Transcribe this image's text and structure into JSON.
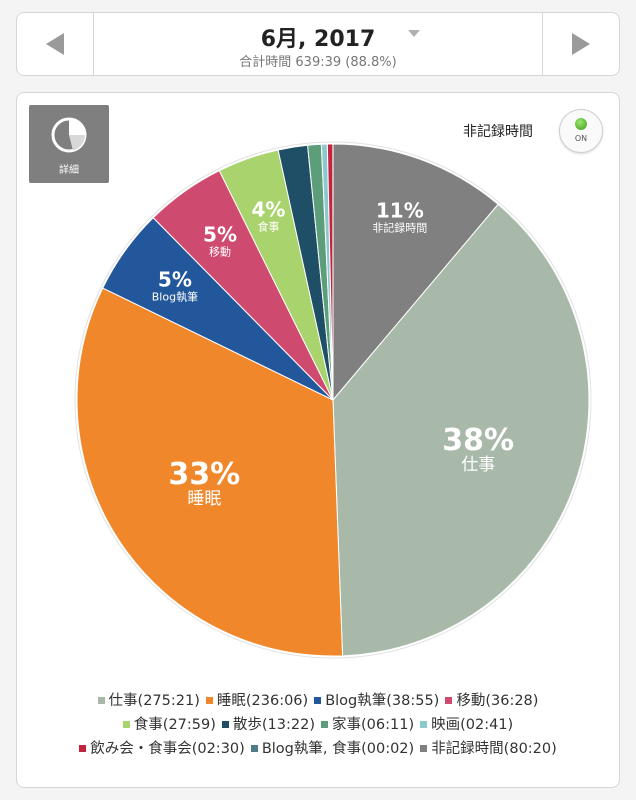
{
  "header": {
    "title": "6月, 2017",
    "subtitle": "合計時間 639:39 (88.8%)"
  },
  "detail_button": {
    "label": "詳細"
  },
  "unrecorded_toggle": {
    "label": "非記録時間",
    "state": "ON"
  },
  "colors": {
    "work": "#a9b9a9",
    "sleep": "#f0872a",
    "blog": "#23579b",
    "move": "#cf4a6f",
    "meal": "#a9d36c",
    "walk": "#1f4f66",
    "housework": "#5d9e7a",
    "movie": "#8cc9cf",
    "drinking": "#c2233f",
    "blog_meal": "#4e7c88",
    "unrecorded": "#808080"
  },
  "chart_data": {
    "type": "pie",
    "start": "12 o'clock, clockwise",
    "slices": [
      {
        "key": "unrecorded",
        "name": "非記録時間",
        "value": 80.33,
        "legend": "非記録時間(80:20)",
        "pct_label": "11%"
      },
      {
        "key": "work",
        "name": "仕事",
        "value": 275.35,
        "legend": "仕事(275:21)",
        "pct_label": "38%"
      },
      {
        "key": "sleep",
        "name": "睡眠",
        "value": 236.1,
        "legend": "睡眠(236:06)",
        "pct_label": "33%"
      },
      {
        "key": "blog",
        "name": "Blog執筆",
        "value": 38.92,
        "legend": "Blog執筆(38:55)",
        "pct_label": "5%"
      },
      {
        "key": "move",
        "name": "移動",
        "value": 36.47,
        "legend": "移動(36:28)",
        "pct_label": "5%"
      },
      {
        "key": "meal",
        "name": "食事",
        "value": 27.98,
        "legend": "食事(27:59)",
        "pct_label": "4%"
      },
      {
        "key": "walk",
        "name": "散歩",
        "value": 13.37,
        "legend": "散歩(13:22)",
        "pct_label": ""
      },
      {
        "key": "housework",
        "name": "家事",
        "value": 6.18,
        "legend": "家事(06:11)",
        "pct_label": ""
      },
      {
        "key": "movie",
        "name": "映画",
        "value": 2.68,
        "legend": "映画(02:41)",
        "pct_label": ""
      },
      {
        "key": "drinking",
        "name": "飲み会・食事会",
        "value": 2.5,
        "legend": "飲み会・食事会(02:30)",
        "pct_label": ""
      },
      {
        "key": "blog_meal",
        "name": "Blog執筆, 食事",
        "value": 0.03,
        "legend": "Blog執筆, 食事(00:02)",
        "pct_label": ""
      }
    ],
    "legend_rows": [
      [
        "work",
        "sleep",
        "blog",
        "move"
      ],
      [
        "meal",
        "walk",
        "housework",
        "movie"
      ],
      [
        "drinking",
        "blog_meal",
        "unrecorded"
      ]
    ]
  }
}
